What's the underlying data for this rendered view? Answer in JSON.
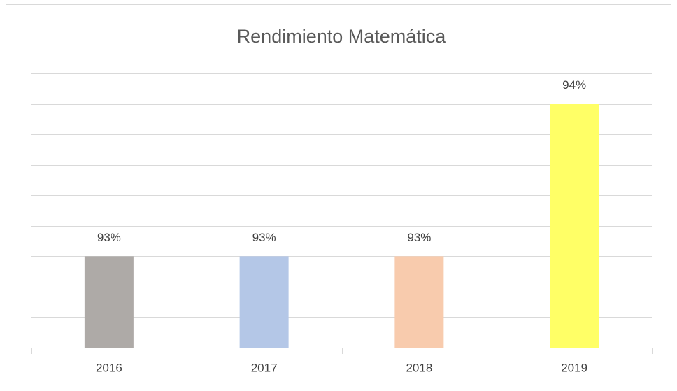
{
  "chart_data": {
    "type": "bar",
    "title": "Rendimiento Matemática",
    "categories": [
      "2016",
      "2017",
      "2018",
      "2019"
    ],
    "values": [
      93.3,
      93.3,
      93.3,
      93.8
    ],
    "value_labels": [
      "93%",
      "93%",
      "93%",
      "94%"
    ],
    "colors": [
      "#aeaaa7",
      "#b4c7e7",
      "#f8cbad",
      "#ffff66"
    ],
    "ylim": [
      93.0,
      93.9
    ],
    "yticks": [
      93.0,
      93.1,
      93.2,
      93.3,
      93.4,
      93.5,
      93.6,
      93.7,
      93.8,
      93.9
    ],
    "grid": true
  }
}
